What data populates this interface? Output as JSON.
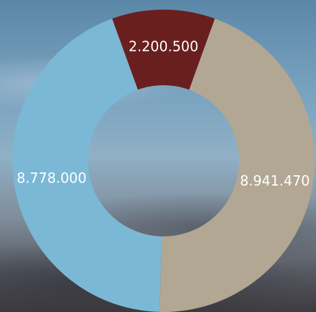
{
  "chart_data": {
    "type": "donut",
    "categories": [
      null,
      null,
      null
    ],
    "values": [
      2200500,
      8941470,
      8778000
    ],
    "value_labels": [
      "2.200.500",
      "8.941.470",
      "8.778.000"
    ],
    "colors": [
      "#6a1f1f",
      "#b2a793",
      "#7bb8d6"
    ]
  }
}
